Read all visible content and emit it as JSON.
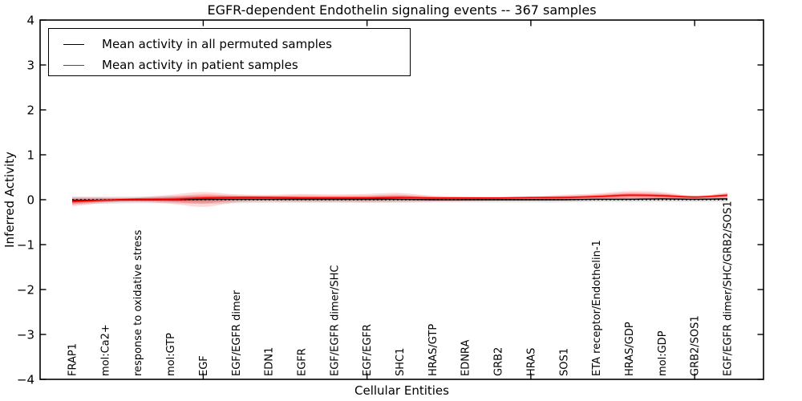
{
  "chart_data": {
    "type": "line",
    "title": "EGFR-dependent Endothelin signaling events -- 367 samples",
    "xlabel": "Cellular Entities",
    "ylabel": "Inferred Activity",
    "ylim": [
      -4,
      4
    ],
    "grid": false,
    "legend_position": "upper left",
    "ytick_labels": [
      "4",
      "3",
      "2",
      "1",
      "0",
      "−1",
      "−2",
      "−3",
      "−4"
    ],
    "ytick_values": [
      4,
      3,
      2,
      1,
      0,
      -1,
      -2,
      -3,
      -4
    ],
    "x_major_tick_indices": [
      4,
      9,
      14,
      19
    ],
    "categories": [
      "FRAP1",
      "mol:Ca2+",
      "response to oxidative stress",
      "mol:GTP",
      "EGF",
      "EGF/EGFR dimer",
      "EDN1",
      "EGFR",
      "EGF/EGFR dimer/SHC",
      "EGF/EGFR",
      "SHC1",
      "HRAS/GTP",
      "EDNRA",
      "GRB2",
      "HRAS",
      "SOS1",
      "ETA receptor/Endothelin-1",
      "HRAS/GDP",
      "mol:GDP",
      "GRB2/SOS1",
      "EGF/EGFR dimer/SHC/GRB2/SOS1"
    ],
    "series": [
      {
        "name": "Mean activity in all permuted samples",
        "color": "#000000",
        "values": [
          -0.01,
          -0.01,
          0.0,
          0.0,
          0.01,
          0.01,
          0.01,
          0.01,
          0.01,
          0.01,
          0.01,
          0.0,
          0.0,
          0.0,
          0.0,
          0.0,
          0.01,
          0.01,
          0.02,
          0.01,
          0.02
        ]
      },
      {
        "name": "Mean activity in patient samples",
        "color": "#ff0000",
        "values": [
          -0.04,
          -0.01,
          0.01,
          0.01,
          0.04,
          0.05,
          0.05,
          0.04,
          0.04,
          0.04,
          0.05,
          0.04,
          0.04,
          0.04,
          0.05,
          0.05,
          0.07,
          0.1,
          0.09,
          0.06,
          0.1
        ]
      }
    ],
    "bands": [
      {
        "name": "permuted-samples-range",
        "color": "rgba(0,0,0,0.10)",
        "upper": [
          0.07,
          0.07,
          0.07,
          0.08,
          0.08,
          0.08,
          0.07,
          0.07,
          0.07,
          0.07,
          0.07,
          0.06,
          0.06,
          0.06,
          0.06,
          0.06,
          0.06,
          0.06,
          0.06,
          0.06,
          0.06
        ],
        "lower": [
          -0.1,
          -0.09,
          -0.08,
          -0.08,
          -0.09,
          -0.08,
          -0.07,
          -0.07,
          -0.07,
          -0.07,
          -0.07,
          -0.06,
          -0.06,
          -0.06,
          -0.06,
          -0.06,
          -0.05,
          -0.05,
          -0.05,
          -0.05,
          -0.05
        ]
      },
      {
        "name": "patient-samples-range",
        "color": "rgba(255,0,0,0.15)",
        "upper": [
          0.06,
          0.05,
          0.05,
          0.11,
          0.17,
          0.12,
          0.11,
          0.13,
          0.12,
          0.13,
          0.15,
          0.09,
          0.07,
          0.06,
          0.07,
          0.11,
          0.14,
          0.19,
          0.17,
          0.09,
          0.16
        ],
        "lower": [
          -0.15,
          -0.07,
          -0.05,
          -0.09,
          -0.16,
          -0.06,
          -0.04,
          -0.05,
          -0.05,
          -0.06,
          -0.05,
          -0.04,
          -0.03,
          -0.02,
          -0.02,
          -0.01,
          0.0,
          0.01,
          0.01,
          0.01,
          0.03
        ]
      }
    ],
    "zero_line": {
      "value": 0,
      "style": "dotted",
      "color": "#000000"
    }
  }
}
